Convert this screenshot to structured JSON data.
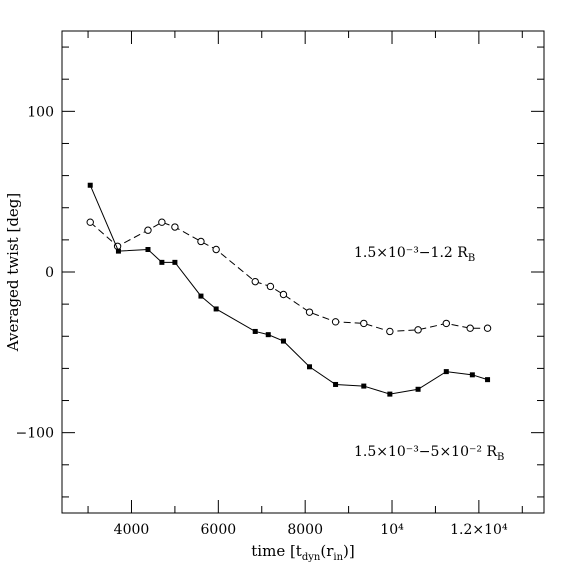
{
  "chart_data": {
    "type": "line",
    "xlabel": "time [t",
    "xlabel_sub": "dyn",
    "xlabel_tail": "(r",
    "xlabel_sub2": "in",
    "xlabel_end": ")]",
    "ylabel": "Averaged twist [deg]",
    "xlim": [
      2400,
      13500
    ],
    "ylim": [
      -150,
      150
    ],
    "x_ticks": [
      {
        "value": 4000,
        "label": "4000"
      },
      {
        "value": 6000,
        "label": "6000"
      },
      {
        "value": 8000,
        "label": "8000"
      },
      {
        "value": 10000,
        "label": "10⁴"
      },
      {
        "value": 12000,
        "label": "1.2×10⁴"
      }
    ],
    "y_ticks": [
      {
        "value": 100,
        "label": "100"
      },
      {
        "value": 0,
        "label": "0"
      },
      {
        "value": -100,
        "label": "−100"
      }
    ],
    "grid": false,
    "annotations": [
      {
        "text_main": "1.5×10⁻³−1.2 R",
        "text_sub": "B"
      },
      {
        "text_main": "1.5×10⁻³−5×10⁻² R",
        "text_sub": "B"
      }
    ],
    "series": [
      {
        "style": "dashed-open-circle",
        "x": [
          3050,
          3680,
          4380,
          4700,
          5000,
          5600,
          5950,
          6850,
          7200,
          7500,
          8100,
          8700,
          9350,
          9950,
          10600,
          11250,
          11800,
          12200
        ],
        "y": [
          31,
          16,
          26,
          31,
          28,
          19,
          14,
          -6,
          -9,
          -14,
          -25,
          -31,
          -32,
          -37,
          -36,
          -32,
          -35,
          -35
        ]
      },
      {
        "style": "solid-filled-square",
        "x": [
          3050,
          3700,
          4380,
          4700,
          5000,
          5600,
          5950,
          6850,
          7150,
          7500,
          8100,
          8700,
          9350,
          9950,
          10600,
          11250,
          11850,
          12200
        ],
        "y": [
          54,
          13,
          14,
          6,
          6,
          -15,
          -23,
          -37,
          -39,
          -43,
          -59,
          -70,
          -71,
          -76,
          -73,
          -62,
          -64,
          -67
        ]
      }
    ]
  }
}
